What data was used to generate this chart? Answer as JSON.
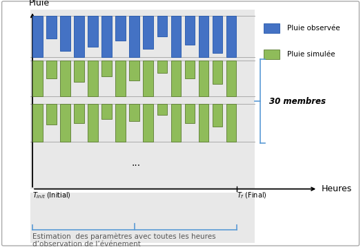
{
  "bg_color": "#e8e8e8",
  "fig_bg": "#ffffff",
  "blue_color": "#4472C4",
  "blue_edge": "#2255AA",
  "green_color": "#8FBC5A",
  "green_dark": "#5A7A30",
  "bracket_color": "#5B9BD5",
  "title_y_label": "Pluie",
  "title_x_label": "Heures",
  "legend_obs": "Pluie observée",
  "legend_sim": "Pluie simulée",
  "membres_label": "30 membres",
  "t_init_label": "$T_{init}$ (Initial)",
  "t_f_label": "$T_{f}$ (Final)",
  "estimation_label": "Estimation  des paramètres avec toutes les heures\nd’observation de l’événement",
  "blue_bars": [
    1.0,
    0.55,
    0.85,
    1.0,
    0.75,
    1.0,
    0.6,
    1.0,
    0.8,
    0.5,
    1.0,
    0.7,
    1.0,
    0.9,
    1.0
  ],
  "green_bars1": [
    1.0,
    0.5,
    1.0,
    0.6,
    1.0,
    0.45,
    1.0,
    0.55,
    1.0,
    0.35,
    1.0,
    0.5,
    1.0,
    0.65,
    1.0
  ],
  "green_bars2": [
    1.0,
    0.55,
    1.0,
    0.5,
    1.0,
    0.4,
    1.0,
    0.45,
    1.0,
    0.3,
    1.0,
    0.5,
    1.0,
    0.6,
    1.0
  ]
}
